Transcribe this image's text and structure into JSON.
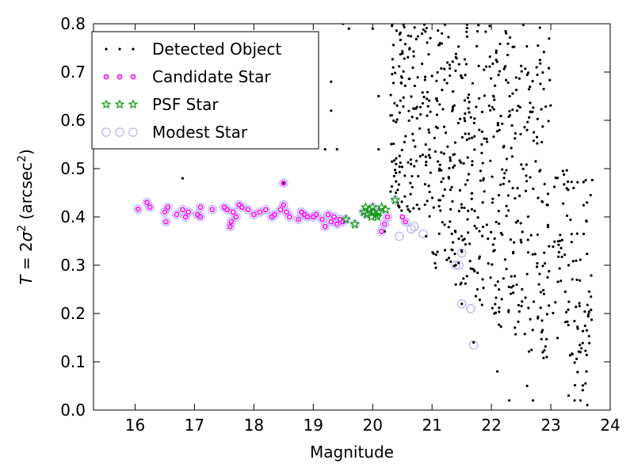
{
  "chart_data": {
    "type": "scatter",
    "xlabel": "Magnitude",
    "ylabel_parts": [
      "T",
      " = 2",
      "σ",
      "2",
      " (arcsec",
      "2",
      ")"
    ],
    "xlim": [
      15.3,
      24.0
    ],
    "ylim": [
      0.0,
      0.8
    ],
    "xticks": [
      16,
      17,
      18,
      19,
      20,
      21,
      22,
      23,
      24
    ],
    "yticks": [
      0.0,
      0.1,
      0.2,
      0.3,
      0.4,
      0.5,
      0.6,
      0.7,
      0.8
    ],
    "grid": false,
    "legend_position": "top-left",
    "colors": {
      "detected": "#000000",
      "candidate": "#ff00ff",
      "psf": "#1a9a1a",
      "modest": "#b8b8f0"
    },
    "series": [
      {
        "name": "Detected Object",
        "marker": "dot",
        "generated": {
          "count": 780,
          "seed": 7,
          "x_range": [
            20.3,
            23.7
          ],
          "y_range": [
            0.0,
            0.8
          ]
        },
        "points": [
          [
            16.8,
            0.48
          ],
          [
            18.5,
            0.47
          ],
          [
            19.2,
            0.54
          ],
          [
            19.3,
            0.62
          ],
          [
            19.3,
            0.68
          ],
          [
            19.5,
            0.8
          ],
          [
            20.1,
            0.65
          ],
          [
            20.3,
            0.61
          ],
          [
            20.1,
            0.54
          ],
          [
            20.0,
            0.79
          ],
          [
            19.6,
            0.79
          ],
          [
            19.4,
            0.54
          ],
          [
            20.2,
            0.37
          ],
          [
            20.9,
            0.36
          ],
          [
            21.4,
            0.26
          ],
          [
            21.5,
            0.22
          ],
          [
            21.7,
            0.14
          ],
          [
            21.4,
            0.3
          ],
          [
            23.3,
            0.3
          ],
          [
            23.6,
            0.08
          ],
          [
            23.5,
            0.12
          ],
          [
            23.4,
            0.02
          ],
          [
            23.5,
            0.02
          ],
          [
            23.3,
            0.03
          ],
          [
            22.3,
            0.02
          ],
          [
            22.7,
            0.02
          ],
          [
            22.1,
            0.08
          ],
          [
            22.6,
            0.05
          ]
        ]
      },
      {
        "name": "Candidate Star",
        "marker": "circle-small",
        "points": [
          [
            16.05,
            0.416
          ],
          [
            16.2,
            0.43
          ],
          [
            16.25,
            0.42
          ],
          [
            16.5,
            0.41
          ],
          [
            16.52,
            0.39
          ],
          [
            16.55,
            0.42
          ],
          [
            16.7,
            0.405
          ],
          [
            16.8,
            0.415
          ],
          [
            16.85,
            0.4
          ],
          [
            16.9,
            0.41
          ],
          [
            17.05,
            0.405
          ],
          [
            17.1,
            0.42
          ],
          [
            17.1,
            0.4
          ],
          [
            17.3,
            0.415
          ],
          [
            17.5,
            0.42
          ],
          [
            17.55,
            0.415
          ],
          [
            17.6,
            0.38
          ],
          [
            17.62,
            0.39
          ],
          [
            17.65,
            0.41
          ],
          [
            17.7,
            0.4
          ],
          [
            17.75,
            0.425
          ],
          [
            17.8,
            0.42
          ],
          [
            17.9,
            0.415
          ],
          [
            18.0,
            0.405
          ],
          [
            18.1,
            0.41
          ],
          [
            18.2,
            0.415
          ],
          [
            18.3,
            0.4
          ],
          [
            18.35,
            0.405
          ],
          [
            18.45,
            0.415
          ],
          [
            18.5,
            0.425
          ],
          [
            18.55,
            0.41
          ],
          [
            18.6,
            0.4
          ],
          [
            18.75,
            0.395
          ],
          [
            18.8,
            0.41
          ],
          [
            18.85,
            0.405
          ],
          [
            18.9,
            0.4
          ],
          [
            19.0,
            0.4
          ],
          [
            19.05,
            0.405
          ],
          [
            19.15,
            0.395
          ],
          [
            19.2,
            0.38
          ],
          [
            19.25,
            0.405
          ],
          [
            19.3,
            0.39
          ],
          [
            19.35,
            0.4
          ],
          [
            19.4,
            0.385
          ],
          [
            19.45,
            0.395
          ],
          [
            19.5,
            0.39
          ],
          [
            20.15,
            0.37
          ],
          [
            20.2,
            0.385
          ],
          [
            20.25,
            0.4
          ],
          [
            20.5,
            0.4
          ],
          [
            20.55,
            0.39
          ],
          [
            18.5,
            0.47
          ]
        ]
      },
      {
        "name": "PSF Star",
        "marker": "star",
        "points": [
          [
            19.55,
            0.395
          ],
          [
            19.7,
            0.385
          ],
          [
            19.85,
            0.41
          ],
          [
            19.88,
            0.42
          ],
          [
            19.9,
            0.405
          ],
          [
            19.95,
            0.415
          ],
          [
            19.98,
            0.4
          ],
          [
            20.0,
            0.42
          ],
          [
            20.02,
            0.41
          ],
          [
            20.05,
            0.405
          ],
          [
            20.08,
            0.4
          ],
          [
            20.1,
            0.41
          ],
          [
            20.15,
            0.42
          ],
          [
            20.22,
            0.415
          ],
          [
            20.38,
            0.435
          ]
        ]
      },
      {
        "name": "Modest Star",
        "marker": "circle-large",
        "points": [
          [
            16.05,
            0.416
          ],
          [
            16.2,
            0.43
          ],
          [
            16.25,
            0.42
          ],
          [
            16.5,
            0.41
          ],
          [
            16.52,
            0.39
          ],
          [
            16.55,
            0.42
          ],
          [
            16.7,
            0.405
          ],
          [
            16.8,
            0.415
          ],
          [
            16.85,
            0.4
          ],
          [
            16.9,
            0.41
          ],
          [
            17.05,
            0.405
          ],
          [
            17.1,
            0.42
          ],
          [
            17.1,
            0.4
          ],
          [
            17.3,
            0.415
          ],
          [
            17.5,
            0.42
          ],
          [
            17.55,
            0.415
          ],
          [
            17.6,
            0.38
          ],
          [
            17.62,
            0.39
          ],
          [
            17.65,
            0.41
          ],
          [
            17.7,
            0.4
          ],
          [
            17.75,
            0.425
          ],
          [
            17.8,
            0.42
          ],
          [
            17.9,
            0.415
          ],
          [
            18.0,
            0.405
          ],
          [
            18.1,
            0.41
          ],
          [
            18.2,
            0.415
          ],
          [
            18.3,
            0.4
          ],
          [
            18.35,
            0.405
          ],
          [
            18.45,
            0.415
          ],
          [
            18.5,
            0.425
          ],
          [
            18.55,
            0.41
          ],
          [
            18.6,
            0.4
          ],
          [
            18.75,
            0.395
          ],
          [
            18.8,
            0.41
          ],
          [
            18.85,
            0.405
          ],
          [
            18.9,
            0.4
          ],
          [
            19.0,
            0.4
          ],
          [
            19.05,
            0.405
          ],
          [
            19.15,
            0.395
          ],
          [
            19.2,
            0.38
          ],
          [
            19.25,
            0.405
          ],
          [
            19.3,
            0.39
          ],
          [
            19.35,
            0.4
          ],
          [
            19.4,
            0.385
          ],
          [
            19.45,
            0.395
          ],
          [
            19.5,
            0.39
          ],
          [
            18.5,
            0.47
          ],
          [
            19.55,
            0.395
          ],
          [
            19.7,
            0.385
          ],
          [
            19.85,
            0.41
          ],
          [
            19.9,
            0.405
          ],
          [
            20.0,
            0.42
          ],
          [
            20.1,
            0.41
          ],
          [
            20.2,
            0.385
          ],
          [
            20.15,
            0.37
          ],
          [
            20.25,
            0.4
          ],
          [
            20.38,
            0.435
          ],
          [
            20.45,
            0.36
          ],
          [
            20.55,
            0.39
          ],
          [
            20.65,
            0.375
          ],
          [
            20.7,
            0.38
          ],
          [
            20.85,
            0.365
          ],
          [
            21.4,
            0.3
          ],
          [
            21.45,
            0.3
          ],
          [
            21.5,
            0.325
          ],
          [
            21.5,
            0.22
          ],
          [
            21.65,
            0.21
          ],
          [
            21.7,
            0.135
          ]
        ]
      }
    ]
  }
}
